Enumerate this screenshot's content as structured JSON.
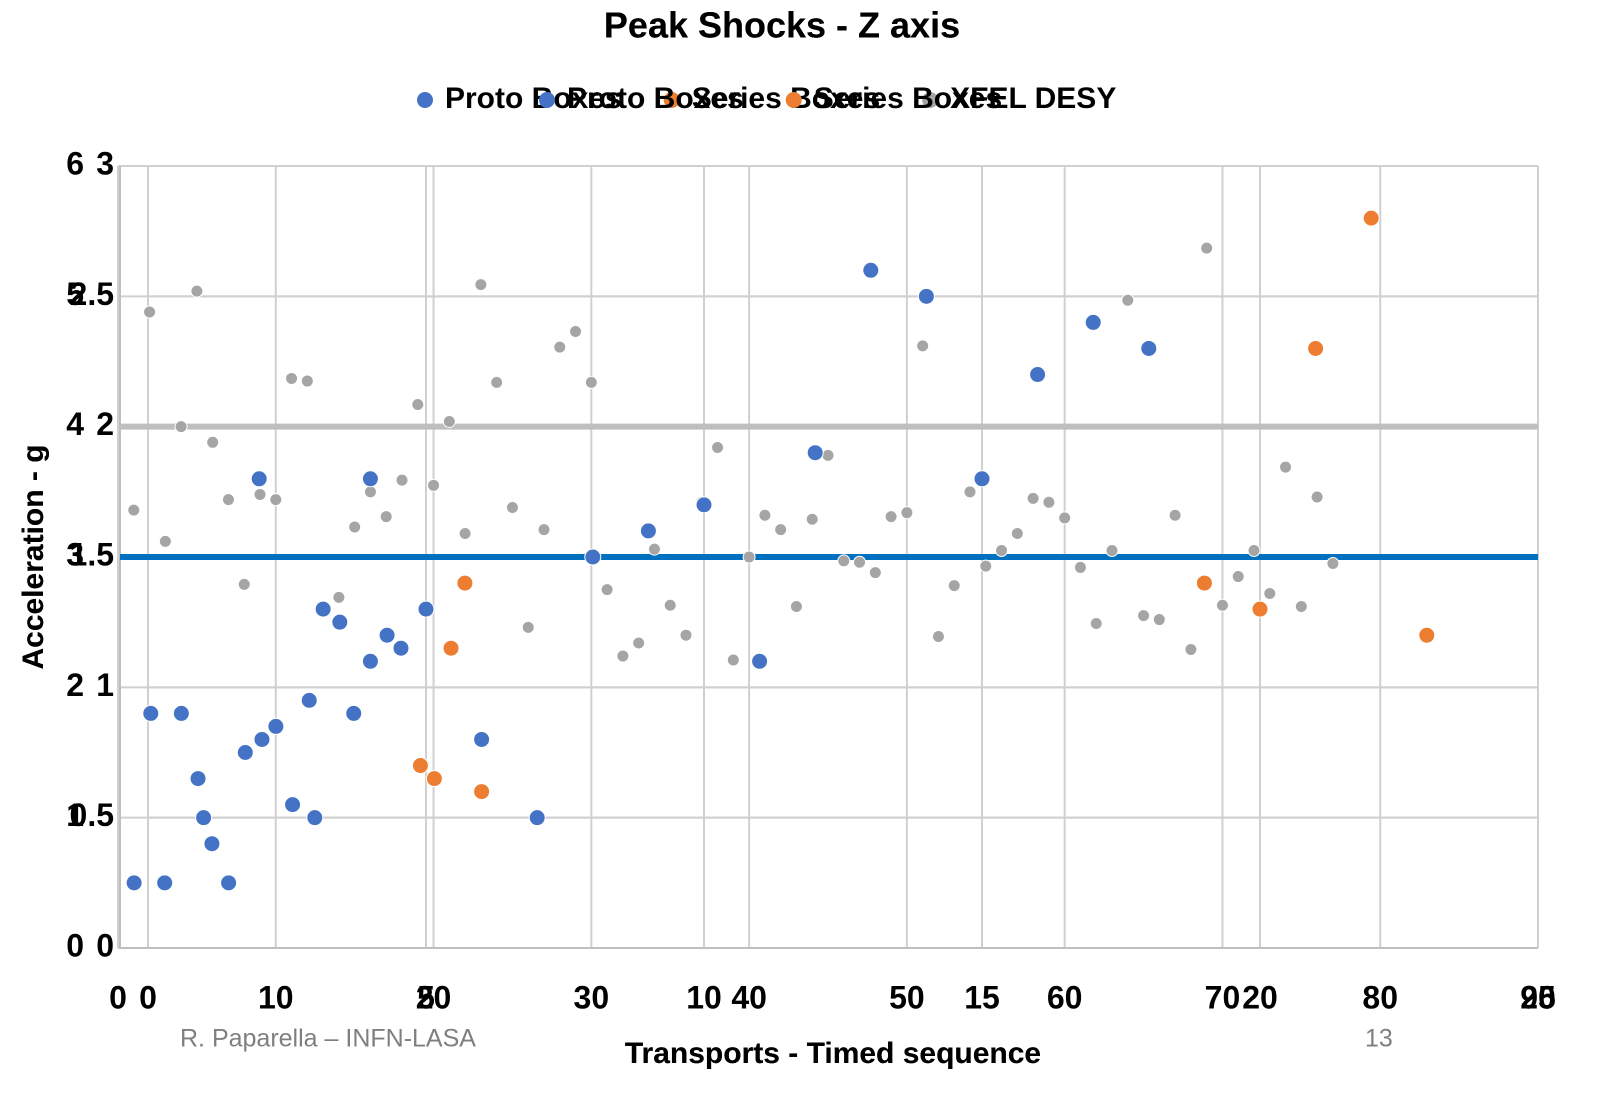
{
  "chart_data": [
    {
      "type": "scatter",
      "title": "Peak Shocks - Z axis",
      "x_label": "Transports - Timed sequence",
      "y_label": "Acceleration - g",
      "xlim": [
        0,
        90
      ],
      "xticks": [
        0,
        10,
        20,
        30,
        40,
        50,
        60,
        70,
        80,
        90
      ],
      "ylim": [
        0,
        6
      ],
      "yticks": [
        0,
        1,
        2,
        3,
        4,
        5,
        6
      ],
      "grid": true,
      "series": [
        {
          "name": "Proto Boxes",
          "color": "#4472c4",
          "x": [],
          "values": []
        },
        {
          "name": "Series Boxes",
          "color": "#ed7d31",
          "x": [],
          "values": []
        },
        {
          "name": "XFEL DESY",
          "color": "#a5a5a5",
          "x": [
            1,
            2,
            3,
            4,
            5,
            6,
            7,
            8,
            9,
            10,
            11,
            12,
            13,
            14,
            15,
            16,
            17,
            18,
            19,
            20,
            21,
            22,
            23,
            24,
            25,
            26,
            27,
            28,
            29,
            30,
            31,
            32,
            33,
            34,
            35,
            36,
            37,
            38,
            39,
            40,
            41,
            42,
            43,
            44,
            45,
            46,
            47,
            48,
            49,
            50,
            51,
            52,
            53,
            54,
            55,
            56,
            57,
            58,
            59,
            60,
            61,
            62,
            63,
            64,
            65,
            66,
            67,
            68,
            69,
            70,
            71,
            72,
            73,
            74,
            75,
            76,
            77
          ],
          "values": [
            3.36,
            4.88,
            3.12,
            4.0,
            5.04,
            3.88,
            3.44,
            2.79,
            3.48,
            3.44,
            4.37,
            4.35,
            2.59,
            2.69,
            3.23,
            3.5,
            3.31,
            3.59,
            4.17,
            3.55,
            4.04,
            3.18,
            5.09,
            4.34,
            3.38,
            2.46,
            3.21,
            4.61,
            4.73,
            4.34,
            2.75,
            2.24,
            2.34,
            3.06,
            2.63,
            2.4,
            3.42,
            3.84,
            2.21,
            3.0,
            3.32,
            3.21,
            2.62,
            3.29,
            3.78,
            2.97,
            2.96,
            2.88,
            3.31,
            3.34,
            4.62,
            2.39,
            2.78,
            3.5,
            2.93,
            3.05,
            3.18,
            3.45,
            3.42,
            3.3,
            2.92,
            2.49,
            3.05,
            4.97,
            2.55,
            2.52,
            3.32,
            2.29,
            5.37,
            2.63,
            2.85,
            3.05,
            2.72,
            3.69,
            2.62,
            3.46,
            2.95
          ]
        }
      ]
    },
    {
      "type": "scatter",
      "title": "Peak Shocks - Z axis",
      "x_label": "Transports - Timed sequence",
      "y_label": "Acceleration - g",
      "xlim": [
        0,
        25
      ],
      "xticks": [
        0,
        5,
        10,
        15,
        20,
        25
      ],
      "ylim": [
        0,
        3
      ],
      "yticks": [
        0,
        0.5,
        1,
        1.5,
        2,
        2.5,
        3
      ],
      "grid": true,
      "reference_lines": [
        {
          "value": 2,
          "color": "#bfbfbf"
        },
        {
          "value": 1.5,
          "color": "#0070c0"
        }
      ],
      "series": [
        {
          "name": "Proto Boxes",
          "color": "#4472c4",
          "x": [
            -0.25,
            0.05,
            0.3,
            0.6,
            0.9,
            1.0,
            1.15,
            1.45,
            1.75,
            2.0,
            2.05,
            2.3,
            2.6,
            2.9,
            3.0,
            3.15,
            3.45,
            3.7,
            4.0,
            4.0,
            4.3,
            4.55,
            5.0,
            6.0,
            7.0,
            8.0,
            9.0,
            10.0,
            11.0,
            12.0,
            13.0,
            14.0,
            15.0,
            16.0,
            17.0,
            18.0
          ],
          "values": [
            0.25,
            0.9,
            0.25,
            0.9,
            0.65,
            0.5,
            0.4,
            0.25,
            0.75,
            1.8,
            0.8,
            0.85,
            0.55,
            0.95,
            0.5,
            1.3,
            1.25,
            0.9,
            1.1,
            1.8,
            1.2,
            1.15,
            1.3,
            0.8,
            0.5,
            1.5,
            1.6,
            1.7,
            1.1,
            1.9,
            2.6,
            2.5,
            1.8,
            2.2,
            2.4,
            2.3
          ]
        },
        {
          "name": "Series Boxes",
          "color": "#ed7d31",
          "x": [
            4.9,
            5.15,
            5.45,
            5.7,
            6.0,
            19.0,
            20.0,
            21.0,
            22.0,
            23.0
          ],
          "values": [
            0.7,
            0.65,
            1.15,
            1.4,
            0.6,
            1.4,
            1.3,
            2.3,
            2.8,
            1.2
          ]
        }
      ]
    }
  ],
  "footer": {
    "author": "R. Paparella – INFN-LASA",
    "page": "13"
  }
}
